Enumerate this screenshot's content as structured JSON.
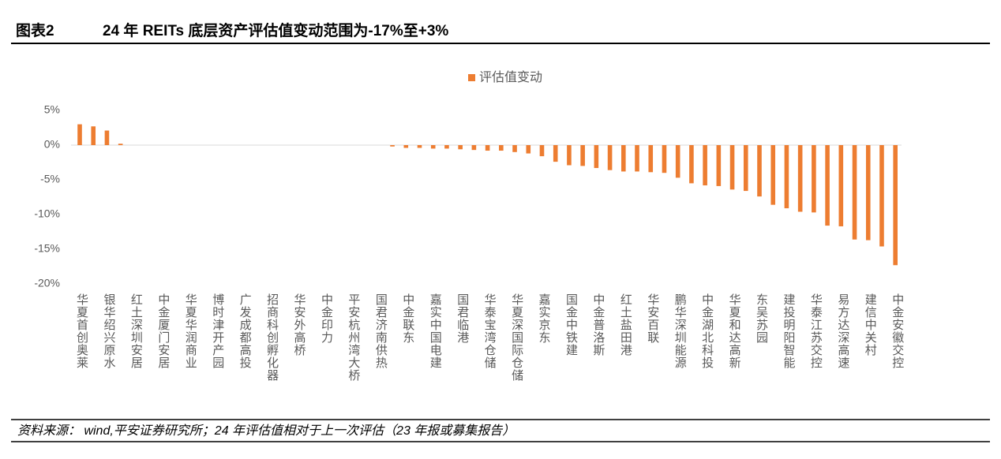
{
  "header": {
    "figure": "图表2",
    "title": "24 年 REITs 底层资产评估值变动范围为-17%至+3%"
  },
  "chart_data": {
    "type": "bar",
    "categories": [
      "华夏首创奥莱",
      null,
      "银华绍兴原水",
      null,
      "红土深圳安居",
      null,
      "中金厦门安居",
      null,
      "华夏华润商业",
      null,
      "博时津开产园",
      null,
      "广发成都高投",
      null,
      "招商科创孵化器",
      null,
      "华安外高桥",
      null,
      "中金印力",
      null,
      "平安杭州湾大桥",
      null,
      "国君济南供热",
      null,
      "中金联东",
      null,
      "嘉实中国电建",
      null,
      "国君临港",
      null,
      "华泰宝湾仓储",
      null,
      "华夏深国际仓储",
      null,
      "嘉实京东",
      null,
      "国金中铁建",
      null,
      "中金普洛斯",
      null,
      "红土盐田港",
      null,
      "华安百联",
      null,
      "鹏华深圳能源",
      null,
      "中金湖北科投",
      null,
      "华夏和达高新",
      null,
      "东吴苏园",
      null,
      "建投明阳智能",
      null,
      "华泰江苏交控",
      null,
      "易方达深高速",
      null,
      "建信中关村",
      null,
      "中金安徽交控"
    ],
    "series": [
      {
        "name": "评估值变动",
        "color": "#ed7d31",
        "values": [
          3.0,
          2.7,
          2.1,
          0.2,
          0,
          0,
          0,
          0,
          0,
          0,
          0,
          0,
          0,
          0,
          0,
          0,
          0,
          0,
          0,
          0,
          0,
          0,
          0,
          -0.2,
          -0.4,
          -0.4,
          -0.5,
          -0.5,
          -0.6,
          -0.7,
          -0.8,
          -0.8,
          -1.0,
          -1.2,
          -1.6,
          -2.4,
          -2.9,
          -3.0,
          -3.3,
          -3.6,
          -3.8,
          -3.8,
          -3.9,
          -4.0,
          -4.7,
          -5.5,
          -5.8,
          -5.9,
          -6.4,
          -6.6,
          -7.4,
          -8.6,
          -9.1,
          -9.6,
          -9.7,
          -11.6,
          -11.7,
          -13.6,
          -13.7,
          -14.6,
          -17.3
        ]
      }
    ],
    "ylim": [
      -20,
      5
    ],
    "yticks": [
      {
        "value": -20,
        "label": "-20%"
      },
      {
        "value": -15,
        "label": "-15%"
      },
      {
        "value": -10,
        "label": "-10%"
      },
      {
        "value": -5,
        "label": "-5%"
      },
      {
        "value": 0,
        "label": "0%"
      },
      {
        "value": 5,
        "label": "5%"
      }
    ],
    "legend": "top"
  },
  "footer": {
    "source": "资料来源： wind,平安证券研究所；24 年评估值相对于上一次评估（23 年报或募集报告）"
  }
}
